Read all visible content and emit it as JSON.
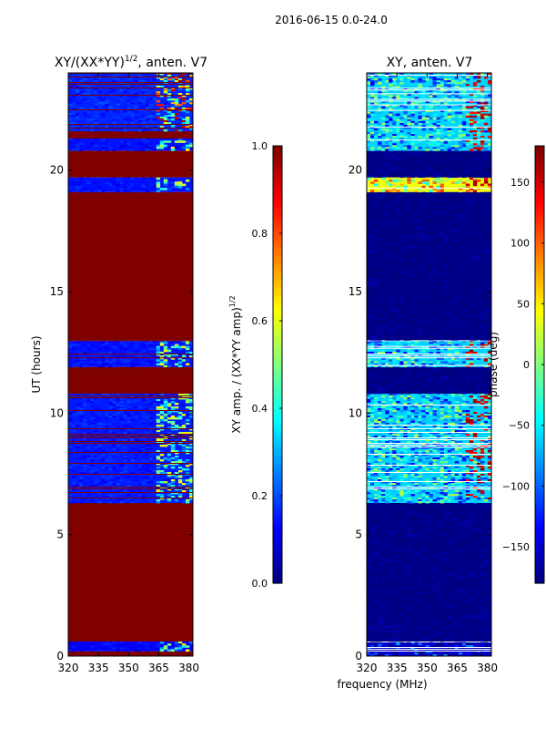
{
  "figure_title": "2016-06-15 0.0-24.0",
  "chart_data": [
    {
      "type": "heatmap",
      "title": "XY/(XX*YY)^1/2, anten. V7",
      "title_main": "XY/(XX*YY)",
      "title_sup": "1/2",
      "title_tail": ", anten. V7",
      "xlabel": "",
      "ylabel": "UT (hours)",
      "xlim": [
        320,
        382
      ],
      "ylim": [
        0,
        24
      ],
      "xticks": [
        320,
        335,
        350,
        365,
        380
      ],
      "yticks": [
        0,
        5,
        10,
        15,
        20
      ],
      "colormap": "jet",
      "colorbar": {
        "label_main": "XY amp. / (XX*YY amp)",
        "label_sup": "1/2",
        "range": [
          0.0,
          1.0
        ],
        "ticks": [
          "0.0",
          "0.2",
          "0.4",
          "0.6",
          "0.8",
          "1.0"
        ],
        "tick_values": [
          0.0,
          0.2,
          0.4,
          0.6,
          0.8,
          1.0
        ]
      },
      "bands": [
        {
          "t0": 0.0,
          "t1": 0.2,
          "v": 1.0
        },
        {
          "t0": 0.2,
          "t1": 0.6,
          "v": 0.12,
          "detail": 365
        },
        {
          "t0": 0.6,
          "t1": 6.3,
          "v": 1.0
        },
        {
          "t0": 6.3,
          "t1": 10.8,
          "v": 0.15,
          "detail": 363,
          "redlines": true
        },
        {
          "t0": 10.8,
          "t1": 11.9,
          "v": 1.0
        },
        {
          "t0": 11.9,
          "t1": 13.0,
          "v": 0.14,
          "detail": 363,
          "redlines": true
        },
        {
          "t0": 13.0,
          "t1": 19.1,
          "v": 1.0
        },
        {
          "t0": 19.1,
          "t1": 19.7,
          "v": 0.14,
          "detail": 363
        },
        {
          "t0": 19.7,
          "t1": 20.8,
          "v": 1.0
        },
        {
          "t0": 20.8,
          "t1": 21.3,
          "v": 0.14,
          "detail": 363
        },
        {
          "t0": 21.3,
          "t1": 21.6,
          "v": 1.0
        },
        {
          "t0": 21.6,
          "t1": 24.0,
          "v": 0.16,
          "detail": 362,
          "redlines": true,
          "hot": true
        }
      ]
    },
    {
      "type": "heatmap",
      "title": "XY, anten. V7",
      "xlabel": "frequency (MHz)",
      "ylabel": "",
      "xlim": [
        320,
        382
      ],
      "ylim": [
        0,
        24
      ],
      "xticks": [
        320,
        335,
        350,
        365,
        380
      ],
      "yticks": [
        0,
        5,
        10,
        15,
        20
      ],
      "colormap": "jet",
      "colorbar": {
        "label_main": "phase (deg)",
        "range": [
          -180,
          180
        ],
        "ticks": [
          "−150",
          "−100",
          "−50",
          "0",
          "50",
          "100",
          "150"
        ],
        "tick_values": [
          -150,
          -100,
          -50,
          0,
          50,
          100,
          150
        ]
      },
      "bands": [
        {
          "t0": 0.0,
          "t1": 0.6,
          "v": -150,
          "phase": true
        },
        {
          "t0": 0.6,
          "t1": 6.3,
          "v": -178
        },
        {
          "t0": 6.3,
          "t1": 10.8,
          "v": -60,
          "phase": true,
          "hotright": true
        },
        {
          "t0": 10.8,
          "t1": 11.9,
          "v": -178
        },
        {
          "t0": 11.9,
          "t1": 13.0,
          "v": -60,
          "phase": true,
          "hotright": true
        },
        {
          "t0": 13.0,
          "t1": 19.1,
          "v": -178
        },
        {
          "t0": 19.1,
          "t1": 19.7,
          "v": 40,
          "phase": true,
          "hotright": true
        },
        {
          "t0": 19.7,
          "t1": 20.8,
          "v": -178
        },
        {
          "t0": 20.8,
          "t1": 24.0,
          "v": -60,
          "phase": true,
          "hotright": true
        }
      ]
    }
  ]
}
